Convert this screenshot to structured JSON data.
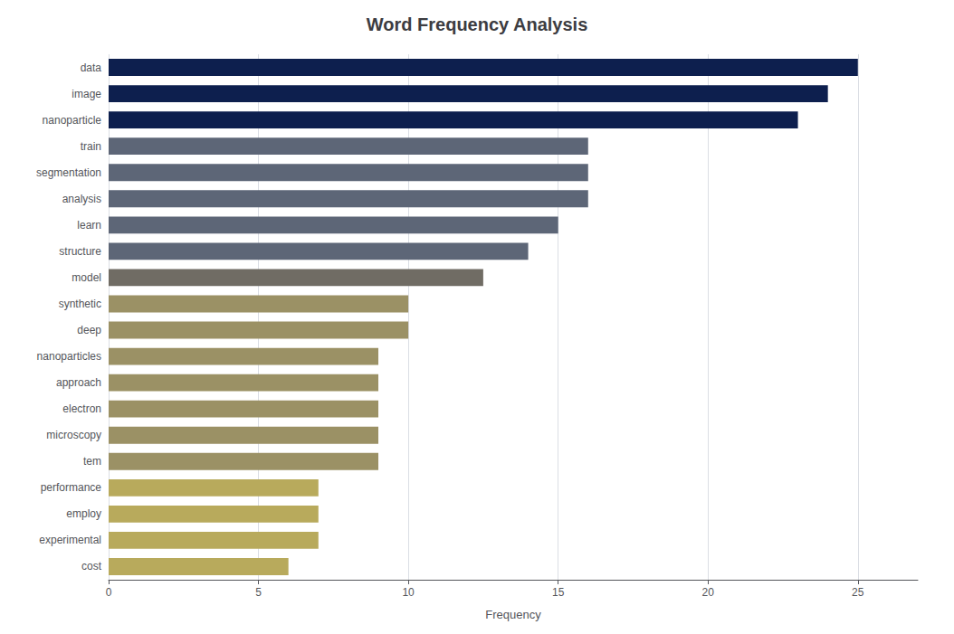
{
  "chart_data": {
    "type": "bar",
    "orientation": "horizontal",
    "title": "Word Frequency Analysis",
    "xlabel": "Frequency",
    "categories": [
      "data",
      "image",
      "nanoparticle",
      "train",
      "segmentation",
      "analysis",
      "learn",
      "structure",
      "model",
      "synthetic",
      "deep",
      "nanoparticles",
      "approach",
      "electron",
      "microscopy",
      "tem",
      "performance",
      "employ",
      "experimental",
      "cost"
    ],
    "values": [
      25,
      24,
      23,
      16,
      16,
      16,
      15,
      14,
      12.5,
      10,
      10,
      9,
      9,
      9,
      9,
      9,
      7,
      7,
      7,
      6
    ],
    "colors": [
      "#0d1f4e",
      "#0d1f4e",
      "#0d1f4e",
      "#5d6677",
      "#5d6677",
      "#5d6677",
      "#5d6677",
      "#5d6677",
      "#706c64",
      "#9b9165",
      "#9b9165",
      "#9b9165",
      "#9b9165",
      "#9b9165",
      "#9b9165",
      "#9b9165",
      "#b8aa5c",
      "#b8aa5c",
      "#b8aa5c",
      "#b8aa5c"
    ],
    "xlim": [
      0,
      27
    ],
    "xticks": [
      0,
      5,
      10,
      15,
      20,
      25
    ],
    "grid": true
  }
}
